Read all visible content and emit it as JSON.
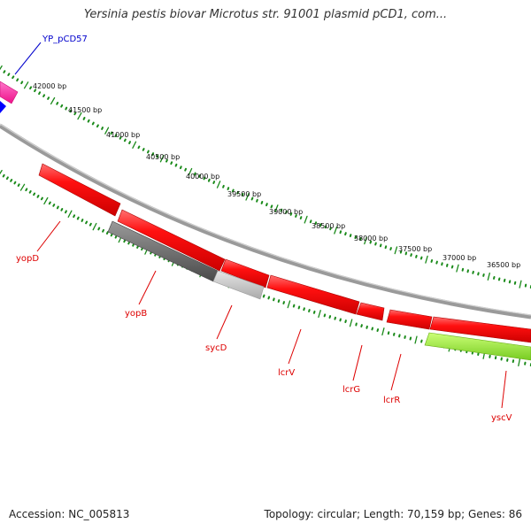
{
  "title": "Yersinia pestis biovar Microtus str. 91001 plasmid pCD1, com...",
  "footer": {
    "accession": "Accession: NC_005813",
    "stats": "Topology: circular; Length: 70,159 bp; Genes: 86"
  },
  "colors": {
    "backbone": "#8c8c8c",
    "tick": "#1a8a1a",
    "gene_red": "#ff0000",
    "gene_grey": "#666666",
    "gene_lightgrey": "#c8c8c8",
    "gene_green": "#99ee33",
    "gene_pink": "#ff2aa0",
    "gene_blue": "#0000ff",
    "label_red": "#dd0000",
    "label_blue": "#0000cc"
  },
  "bp_labels": [
    "42000 bp",
    "41500 bp",
    "41000 bp",
    "40500 bp",
    "40000 bp",
    "39500 bp",
    "39000 bp",
    "38500 bp",
    "38000 bp",
    "37500 bp",
    "37000 bp",
    "36500 bp"
  ],
  "genes": [
    {
      "name": "YP_pCD57",
      "color": "blue-label"
    },
    {
      "name": "yopD",
      "color": "red"
    },
    {
      "name": "yopB",
      "color": "red"
    },
    {
      "name": "sycD",
      "color": "red"
    },
    {
      "name": "lcrV",
      "color": "red"
    },
    {
      "name": "lcrG",
      "color": "red"
    },
    {
      "name": "lcrR",
      "color": "red"
    },
    {
      "name": "yscV",
      "color": "red"
    }
  ]
}
